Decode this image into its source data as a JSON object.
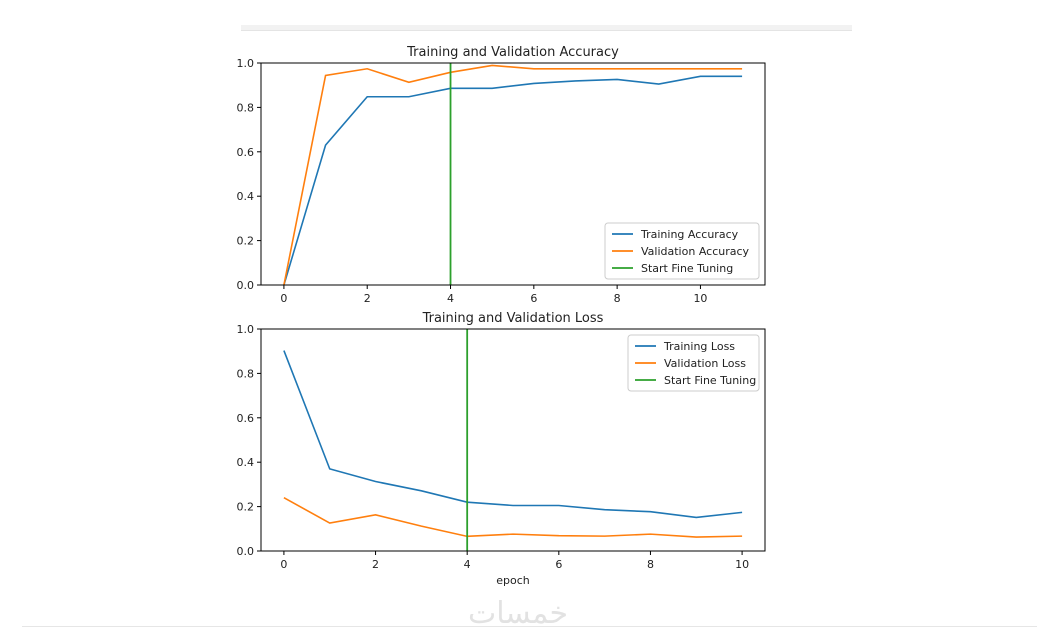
{
  "chart_data": [
    {
      "type": "line",
      "title": "Training and Validation Accuracy",
      "xlabel": "",
      "ylabel": "",
      "xlim": [
        -0.55,
        11.55
      ],
      "ylim": [
        0,
        1.0
      ],
      "xticks": [
        0,
        2,
        4,
        6,
        8,
        10
      ],
      "yticks": [
        "0.0",
        "0.2",
        "0.4",
        "0.6",
        "0.8",
        "1.0"
      ],
      "x": [
        0,
        1,
        2,
        3,
        4,
        5,
        6,
        7,
        8,
        9,
        10,
        11
      ],
      "series": [
        {
          "name": "Training Accuracy",
          "color": "#1f77b4",
          "values": [
            0.0,
            0.63,
            0.848,
            0.848,
            0.886,
            0.886,
            0.908,
            0.919,
            0.926,
            0.905,
            0.94,
            0.94
          ]
        },
        {
          "name": "Validation Accuracy",
          "color": "#ff7f0e",
          "values": [
            0.0,
            0.944,
            0.974,
            0.913,
            0.958,
            0.989,
            0.974,
            0.974,
            0.974,
            0.974,
            0.974,
            0.974
          ]
        }
      ],
      "vline": {
        "name": "Start Fine Tuning",
        "color": "#2ca02c",
        "x": 4
      },
      "legend": "lower-right",
      "grid": false
    },
    {
      "type": "line",
      "title": "Training and Validation Loss",
      "xlabel": "epoch",
      "ylabel": "",
      "xlim": [
        -0.5,
        10.5
      ],
      "ylim": [
        0,
        1.0
      ],
      "xticks": [
        0,
        2,
        4,
        6,
        8,
        10
      ],
      "yticks": [
        "0.0",
        "0.2",
        "0.4",
        "0.6",
        "0.8",
        "1.0"
      ],
      "x": [
        0,
        1,
        2,
        3,
        4,
        5,
        6,
        7,
        8,
        9,
        10
      ],
      "series": [
        {
          "name": "Training Loss",
          "color": "#1f77b4",
          "values": [
            0.903,
            0.37,
            0.313,
            0.271,
            0.22,
            0.205,
            0.205,
            0.186,
            0.177,
            0.151,
            0.174
          ]
        },
        {
          "name": "Validation Loss",
          "color": "#ff7f0e",
          "values": [
            0.24,
            0.126,
            0.163,
            0.112,
            0.066,
            0.076,
            0.069,
            0.067,
            0.076,
            0.063,
            0.067
          ]
        }
      ],
      "vline": {
        "name": "Start Fine Tuning",
        "color": "#2ca02c",
        "x": 4
      },
      "legend": "upper-right",
      "grid": false
    }
  ],
  "watermark": "خمسات"
}
